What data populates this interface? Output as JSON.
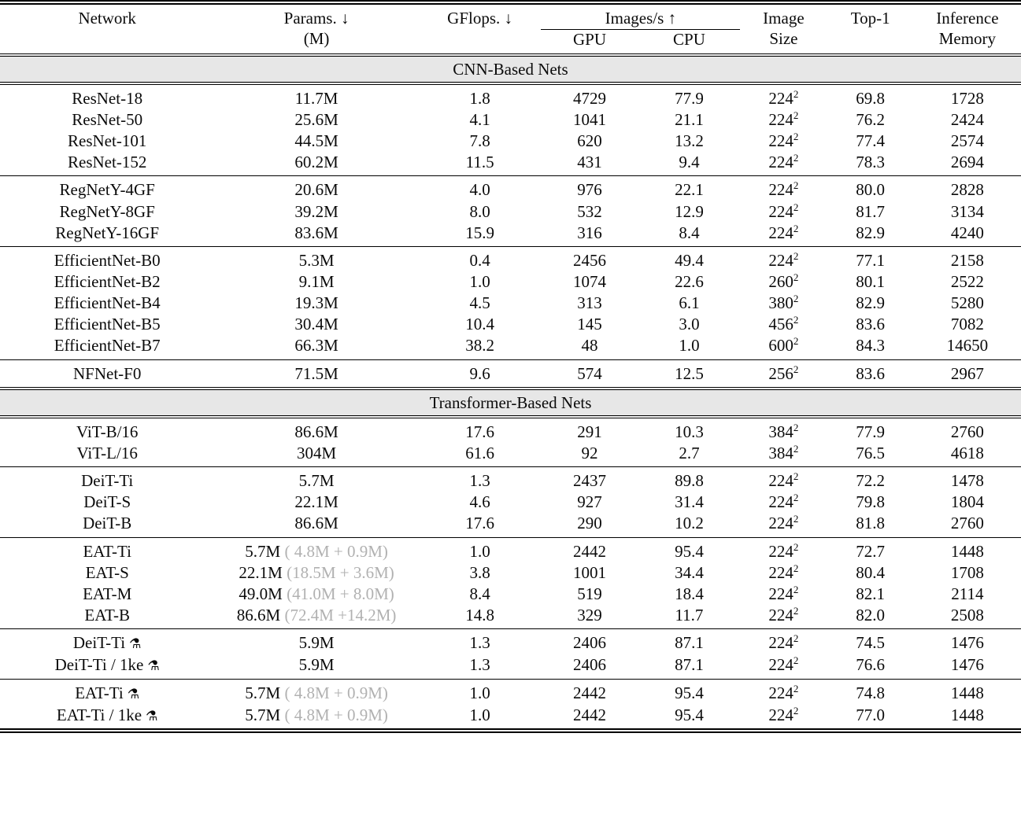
{
  "table": {
    "header": {
      "network": "Network",
      "params_line1": "Params. ↓",
      "params_line2": "(M)",
      "gflops": "GFlops. ↓",
      "images_per_s": "Images/s ↑",
      "gpu": "GPU",
      "cpu": "CPU",
      "image_line1": "Image",
      "image_line2": "Size",
      "top1": "Top-1",
      "memory_line1": "Inference",
      "memory_line2": "Memory"
    },
    "symbols": {
      "alembic": "⚗",
      "down_arrow": "↓",
      "up_arrow": "↑"
    },
    "colors": {
      "band_background": "#e7e7e7",
      "muted_gray_text": "#b1b1b1",
      "rule_color": "#000000"
    },
    "sections": [
      {
        "band": "CNN-Based Nets",
        "groups": [
          {
            "rows": [
              {
                "name": "ResNet-18",
                "symbol": "",
                "params": "11.7M",
                "params_extra": "",
                "gflops": "1.8",
                "gpu": "4729",
                "cpu": "77.9",
                "size": "224",
                "size_sup": "2",
                "top1": "69.8",
                "memory": "1728"
              },
              {
                "name": "ResNet-50",
                "symbol": "",
                "params": "25.6M",
                "params_extra": "",
                "gflops": "4.1",
                "gpu": "1041",
                "cpu": "21.1",
                "size": "224",
                "size_sup": "2",
                "top1": "76.2",
                "memory": "2424"
              },
              {
                "name": "ResNet-101",
                "symbol": "",
                "params": "44.5M",
                "params_extra": "",
                "gflops": "7.8",
                "gpu": "620",
                "cpu": "13.2",
                "size": "224",
                "size_sup": "2",
                "top1": "77.4",
                "memory": "2574"
              },
              {
                "name": "ResNet-152",
                "symbol": "",
                "params": "60.2M",
                "params_extra": "",
                "gflops": "11.5",
                "gpu": "431",
                "cpu": "9.4",
                "size": "224",
                "size_sup": "2",
                "top1": "78.3",
                "memory": "2694"
              }
            ]
          },
          {
            "rows": [
              {
                "name": "RegNetY-4GF",
                "symbol": "",
                "params": "20.6M",
                "params_extra": "",
                "gflops": "4.0",
                "gpu": "976",
                "cpu": "22.1",
                "size": "224",
                "size_sup": "2",
                "top1": "80.0",
                "memory": "2828"
              },
              {
                "name": "RegNetY-8GF",
                "symbol": "",
                "params": "39.2M",
                "params_extra": "",
                "gflops": "8.0",
                "gpu": "532",
                "cpu": "12.9",
                "size": "224",
                "size_sup": "2",
                "top1": "81.7",
                "memory": "3134"
              },
              {
                "name": "RegNetY-16GF",
                "symbol": "",
                "params": "83.6M",
                "params_extra": "",
                "gflops": "15.9",
                "gpu": "316",
                "cpu": "8.4",
                "size": "224",
                "size_sup": "2",
                "top1": "82.9",
                "memory": "4240"
              }
            ]
          },
          {
            "rows": [
              {
                "name": "EfficientNet-B0",
                "symbol": "",
                "params": "5.3M",
                "params_extra": "",
                "gflops": "0.4",
                "gpu": "2456",
                "cpu": "49.4",
                "size": "224",
                "size_sup": "2",
                "top1": "77.1",
                "memory": "2158"
              },
              {
                "name": "EfficientNet-B2",
                "symbol": "",
                "params": "9.1M",
                "params_extra": "",
                "gflops": "1.0",
                "gpu": "1074",
                "cpu": "22.6",
                "size": "260",
                "size_sup": "2",
                "top1": "80.1",
                "memory": "2522"
              },
              {
                "name": "EfficientNet-B4",
                "symbol": "",
                "params": "19.3M",
                "params_extra": "",
                "gflops": "4.5",
                "gpu": "313",
                "cpu": "6.1",
                "size": "380",
                "size_sup": "2",
                "top1": "82.9",
                "memory": "5280"
              },
              {
                "name": "EfficientNet-B5",
                "symbol": "",
                "params": "30.4M",
                "params_extra": "",
                "gflops": "10.4",
                "gpu": "145",
                "cpu": "3.0",
                "size": "456",
                "size_sup": "2",
                "top1": "83.6",
                "memory": "7082"
              },
              {
                "name": "EfficientNet-B7",
                "symbol": "",
                "params": "66.3M",
                "params_extra": "",
                "gflops": "38.2",
                "gpu": "48",
                "cpu": "1.0",
                "size": "600",
                "size_sup": "2",
                "top1": "84.3",
                "memory": "14650"
              }
            ]
          },
          {
            "rows": [
              {
                "name": "NFNet-F0",
                "symbol": "",
                "params": "71.5M",
                "params_extra": "",
                "gflops": "9.6",
                "gpu": "574",
                "cpu": "12.5",
                "size": "256",
                "size_sup": "2",
                "top1": "83.6",
                "memory": "2967"
              }
            ]
          }
        ]
      },
      {
        "band": "Transformer-Based Nets",
        "groups": [
          {
            "rows": [
              {
                "name": "ViT-B/16",
                "symbol": "",
                "params": "86.6M",
                "params_extra": "",
                "gflops": "17.6",
                "gpu": "291",
                "cpu": "10.3",
                "size": "384",
                "size_sup": "2",
                "top1": "77.9",
                "memory": "2760"
              },
              {
                "name": "ViT-L/16",
                "symbol": "",
                "params": "304M",
                "params_extra": "",
                "gflops": "61.6",
                "gpu": "92",
                "cpu": "2.7",
                "size": "384",
                "size_sup": "2",
                "top1": "76.5",
                "memory": "4618"
              }
            ]
          },
          {
            "rows": [
              {
                "name": "DeiT-Ti",
                "symbol": "",
                "params": "5.7M",
                "params_extra": "",
                "gflops": "1.3",
                "gpu": "2437",
                "cpu": "89.8",
                "size": "224",
                "size_sup": "2",
                "top1": "72.2",
                "memory": "1478"
              },
              {
                "name": "DeiT-S",
                "symbol": "",
                "params": "22.1M",
                "params_extra": "",
                "gflops": "4.6",
                "gpu": "927",
                "cpu": "31.4",
                "size": "224",
                "size_sup": "2",
                "top1": "79.8",
                "memory": "1804"
              },
              {
                "name": "DeiT-B",
                "symbol": "",
                "params": "86.6M",
                "params_extra": "",
                "gflops": "17.6",
                "gpu": "290",
                "cpu": "10.2",
                "size": "224",
                "size_sup": "2",
                "top1": "81.8",
                "memory": "2760"
              }
            ]
          },
          {
            "rows": [
              {
                "name": "EAT-Ti",
                "symbol": "",
                "params": "5.7M",
                "params_extra": " ( 4.8M + 0.9M)",
                "gflops": "1.0",
                "gpu": "2442",
                "cpu": "95.4",
                "size": "224",
                "size_sup": "2",
                "top1": "72.7",
                "memory": "1448"
              },
              {
                "name": "EAT-S",
                "symbol": "",
                "params": "22.1M",
                "params_extra": " (18.5M + 3.6M)",
                "gflops": "3.8",
                "gpu": "1001",
                "cpu": "34.4",
                "size": "224",
                "size_sup": "2",
                "top1": "80.4",
                "memory": "1708"
              },
              {
                "name": "EAT-M",
                "symbol": "",
                "params": "49.0M",
                "params_extra": " (41.0M + 8.0M)",
                "gflops": "8.4",
                "gpu": "519",
                "cpu": "18.4",
                "size": "224",
                "size_sup": "2",
                "top1": "82.1",
                "memory": "2114"
              },
              {
                "name": "EAT-B",
                "symbol": "",
                "params": "86.6M",
                "params_extra": " (72.4M +14.2M)",
                "gflops": "14.8",
                "gpu": "329",
                "cpu": "11.7",
                "size": "224",
                "size_sup": "2",
                "top1": "82.0",
                "memory": "2508"
              }
            ]
          },
          {
            "rows": [
              {
                "name": "DeiT-Ti",
                "symbol": "⚗",
                "params": "5.9M",
                "params_extra": "",
                "gflops": "1.3",
                "gpu": "2406",
                "cpu": "87.1",
                "size": "224",
                "size_sup": "2",
                "top1": "74.5",
                "memory": "1476"
              },
              {
                "name": "DeiT-Ti / 1ke",
                "symbol": "⚗",
                "params": "5.9M",
                "params_extra": "",
                "gflops": "1.3",
                "gpu": "2406",
                "cpu": "87.1",
                "size": "224",
                "size_sup": "2",
                "top1": "76.6",
                "memory": "1476"
              }
            ]
          },
          {
            "rows": [
              {
                "name": "EAT-Ti",
                "symbol": "⚗",
                "params": "5.7M",
                "params_extra": " ( 4.8M + 0.9M)",
                "gflops": "1.0",
                "gpu": "2442",
                "cpu": "95.4",
                "size": "224",
                "size_sup": "2",
                "top1": "74.8",
                "memory": "1448"
              },
              {
                "name": "EAT-Ti / 1ke",
                "symbol": "⚗",
                "params": "5.7M",
                "params_extra": " ( 4.8M + 0.9M)",
                "gflops": "1.0",
                "gpu": "2442",
                "cpu": "95.4",
                "size": "224",
                "size_sup": "2",
                "top1": "77.0",
                "memory": "1448"
              }
            ]
          }
        ]
      }
    ]
  }
}
